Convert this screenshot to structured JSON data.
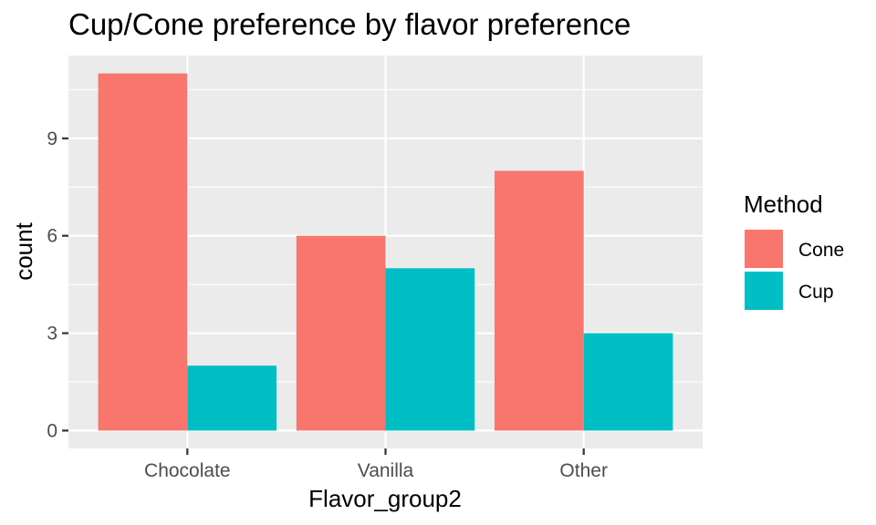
{
  "chart_data": {
    "type": "bar",
    "title": "Cup/Cone preference by flavor preference",
    "xlabel": "Flavor_group2",
    "ylabel": "count",
    "categories": [
      "Chocolate",
      "Vanilla",
      "Other"
    ],
    "series": [
      {
        "name": "Cone",
        "color": "#F8766D",
        "values": [
          11,
          6,
          8
        ]
      },
      {
        "name": "Cup",
        "color": "#00BFC4",
        "values": [
          2,
          5,
          3
        ]
      }
    ],
    "yticks": [
      0,
      3,
      6,
      9
    ],
    "ylim": [
      -0.55,
      11.55
    ],
    "grid": true,
    "legend": {
      "title": "Method",
      "position": "right"
    },
    "colors": {
      "panel": "#EBEBEB",
      "grid": "#FFFFFF",
      "tick_text": "#4D4D4D"
    }
  }
}
